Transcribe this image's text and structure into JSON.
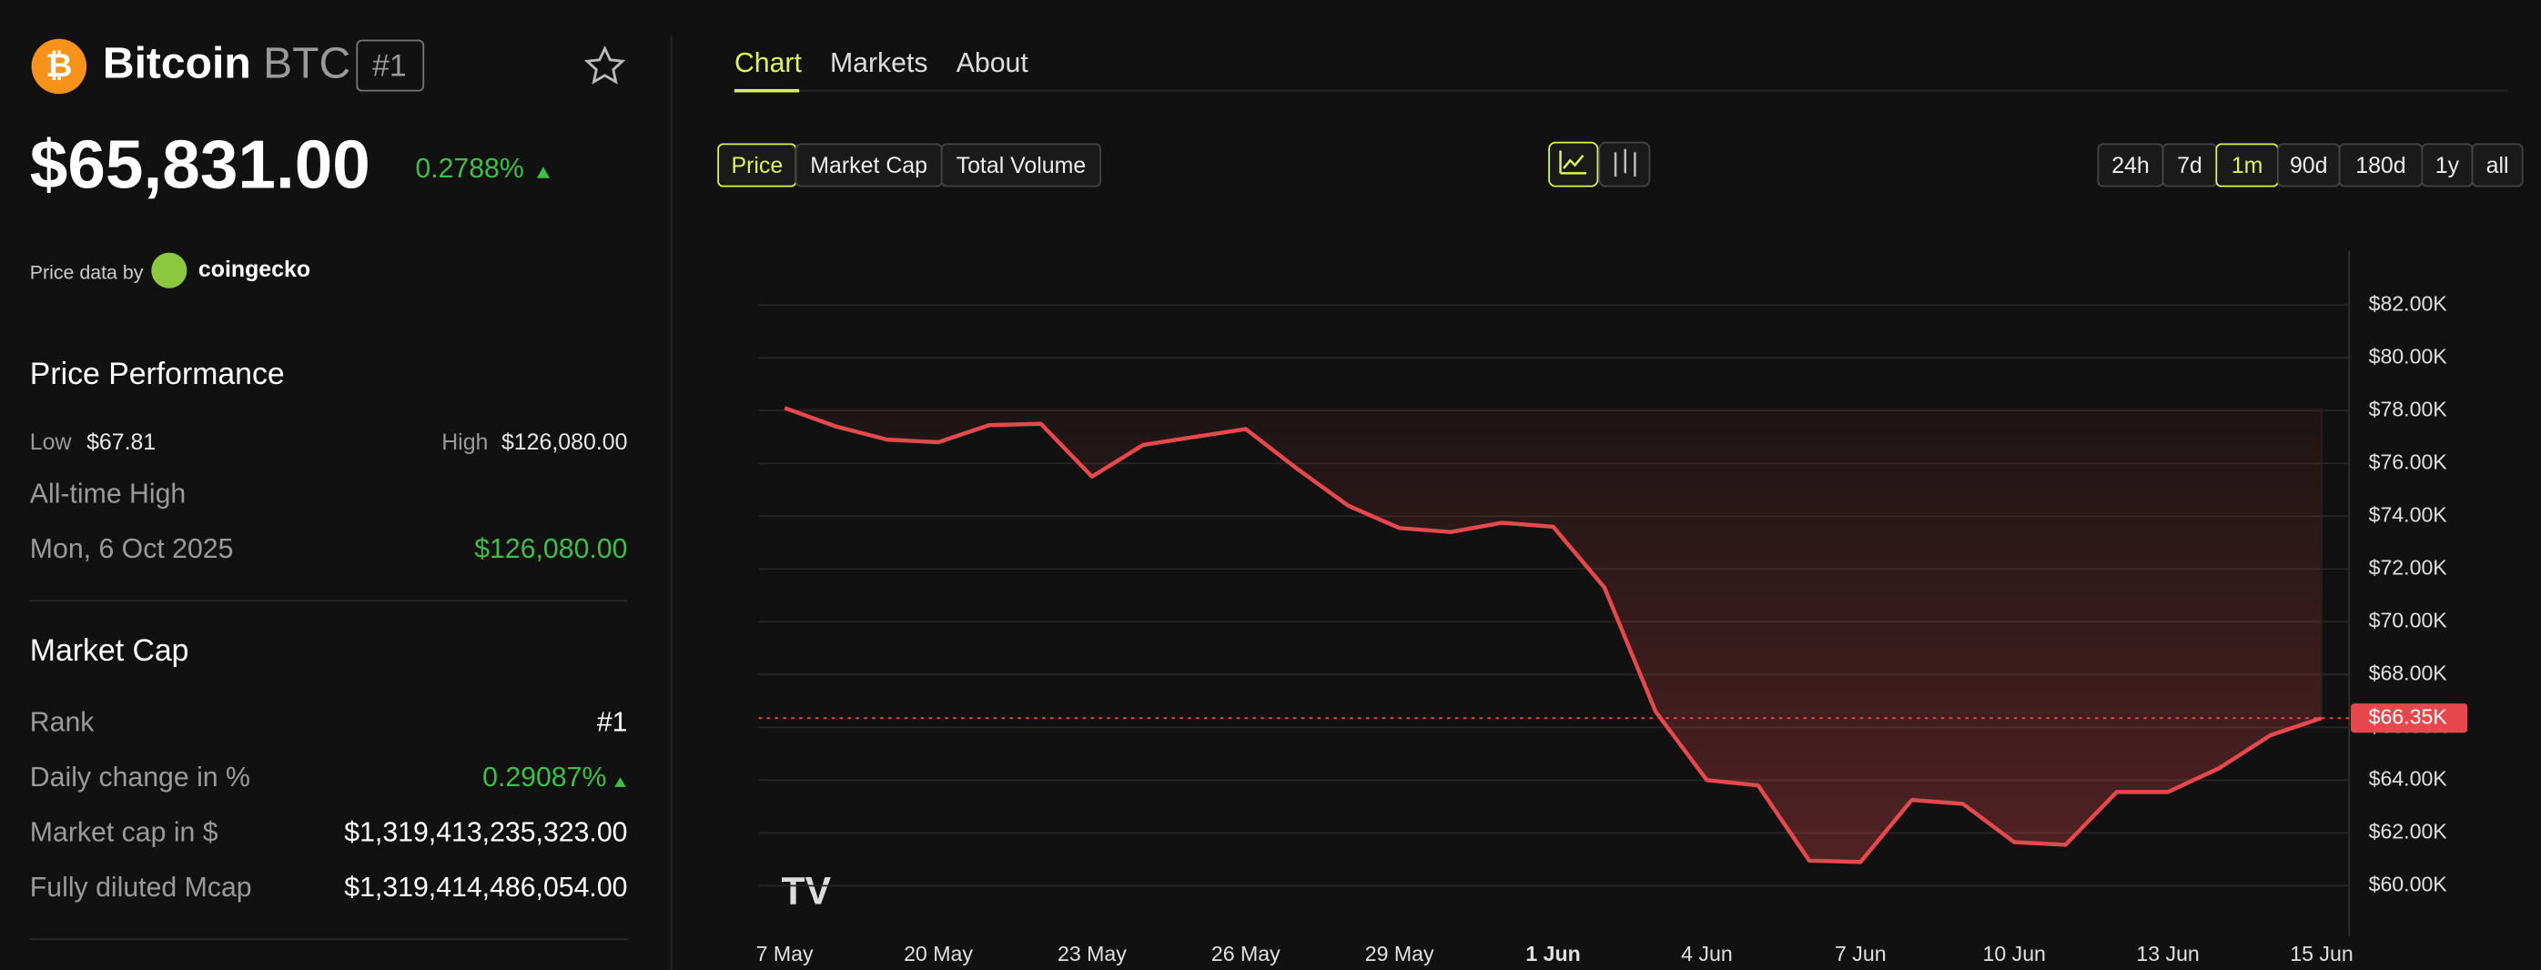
{
  "sidebar": {
    "name": "Bitcoin",
    "symbol": "BTC",
    "rank_badge": "#1",
    "price": "$65,831.00",
    "change": "0.2788%",
    "source_prefix": "Price data by",
    "source": "coingecko",
    "performance_title": "Price Performance",
    "low_label": "Low",
    "low": "$67.81",
    "high_label": "High",
    "high": "$126,080.00",
    "ath_label": "All-time High",
    "ath_date": "Mon, 6 Oct 2025",
    "ath": "$126,080.00",
    "market_cap_title": "Market Cap",
    "rows": [
      [
        "Rank",
        "#1"
      ],
      [
        "Daily change in %",
        "0.29087%"
      ],
      [
        "Market cap in $",
        "$1,319,413,235,323.00"
      ],
      [
        "Fully diluted Mcap",
        "$1,319,414,486,054.00"
      ]
    ]
  },
  "tabs": [
    "Chart",
    "Markets",
    "About"
  ],
  "metrics": [
    "Price",
    "Market Cap",
    "Total Volume"
  ],
  "ranges": [
    "24h",
    "7d",
    "1m",
    "90d",
    "180d",
    "1y",
    "all"
  ],
  "chart_data": {
    "type": "line",
    "categories": [
      "7 May",
      null,
      null,
      "20 May",
      null,
      null,
      "23 May",
      null,
      null,
      "26 May",
      null,
      null,
      "29 May",
      null,
      null,
      "1 Jun",
      null,
      null,
      "4 Jun",
      null,
      null,
      "7 Jun",
      null,
      null,
      "10 Jun",
      null,
      null,
      "13 Jun",
      null,
      null,
      "15 Jun"
    ],
    "series": [
      {
        "name": "Price",
        "color": "#e5484d",
        "values": [
          78.1,
          77.4,
          76.9,
          76.8,
          77.45,
          77.5,
          75.5,
          76.7,
          77.0,
          77.3,
          75.8,
          74.4,
          73.55,
          73.4,
          73.75,
          73.6,
          71.3,
          66.6,
          64.0,
          63.8,
          60.95,
          60.9,
          63.25,
          63.1,
          61.65,
          61.55,
          63.55,
          63.55,
          64.45,
          65.7,
          66.35
        ]
      }
    ],
    "ylim": [
      59.2,
      83.8
    ],
    "yticks": [
      {
        "value": 60,
        "label": "$60.00K"
      },
      {
        "value": 62,
        "label": "$62.00K"
      },
      {
        "value": 64,
        "label": "$64.00K"
      },
      {
        "value": 66,
        "label": "$66.00K"
      },
      {
        "value": 68,
        "label": "$68.00K"
      },
      {
        "value": 70,
        "label": "$70.00K"
      },
      {
        "value": 72,
        "label": "$72.00K"
      },
      {
        "value": 74,
        "label": "$74.00K"
      },
      {
        "value": 76,
        "label": "$76.00K"
      },
      {
        "value": 78,
        "label": "$78.00K"
      },
      {
        "value": 80,
        "label": "$80.00K"
      },
      {
        "value": 82,
        "label": "$82.00K"
      }
    ],
    "last_label": {
      "value": 66.35,
      "label": "$66.35K"
    },
    "grid": true
  }
}
